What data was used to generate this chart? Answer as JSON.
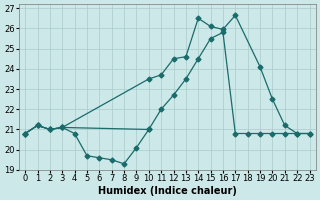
{
  "xlabel": "Humidex (Indice chaleur)",
  "xlim": [
    -0.5,
    23.5
  ],
  "ylim": [
    19,
    27.2
  ],
  "yticks": [
    19,
    20,
    21,
    22,
    23,
    24,
    25,
    26,
    27
  ],
  "xticks": [
    0,
    1,
    2,
    3,
    4,
    5,
    6,
    7,
    8,
    9,
    10,
    11,
    12,
    13,
    14,
    15,
    16,
    17,
    18,
    19,
    20,
    21,
    22,
    23
  ],
  "bg_color": "#cde8e8",
  "grid_color": "#aacccc",
  "line_color": "#1a6b6b",
  "line1_x": [
    0,
    1,
    2,
    3,
    4,
    5,
    6,
    7,
    8,
    9,
    10
  ],
  "line1_y": [
    20.8,
    21.2,
    21.0,
    21.1,
    20.8,
    19.7,
    19.6,
    19.5,
    19.3,
    20.1,
    21.0
  ],
  "line2_x": [
    0,
    1,
    2,
    3,
    10,
    11,
    12,
    13,
    14,
    15,
    16,
    17,
    18,
    19,
    20,
    21,
    22,
    23
  ],
  "line2_y": [
    20.8,
    21.2,
    21.0,
    21.1,
    21.0,
    22.0,
    22.7,
    23.5,
    24.5,
    25.5,
    25.8,
    20.8,
    20.8,
    20.8,
    20.8,
    20.8,
    20.8,
    20.8
  ],
  "line3_x": [
    0,
    1,
    2,
    3,
    10,
    11,
    12,
    13,
    14,
    15,
    16,
    17,
    19,
    20,
    21,
    22,
    23
  ],
  "line3_y": [
    20.8,
    21.2,
    21.0,
    21.1,
    23.5,
    23.7,
    24.5,
    24.6,
    26.5,
    26.1,
    25.95,
    26.65,
    24.1,
    22.5,
    21.2,
    20.8,
    20.8
  ],
  "lw": 0.9,
  "ms": 2.5
}
